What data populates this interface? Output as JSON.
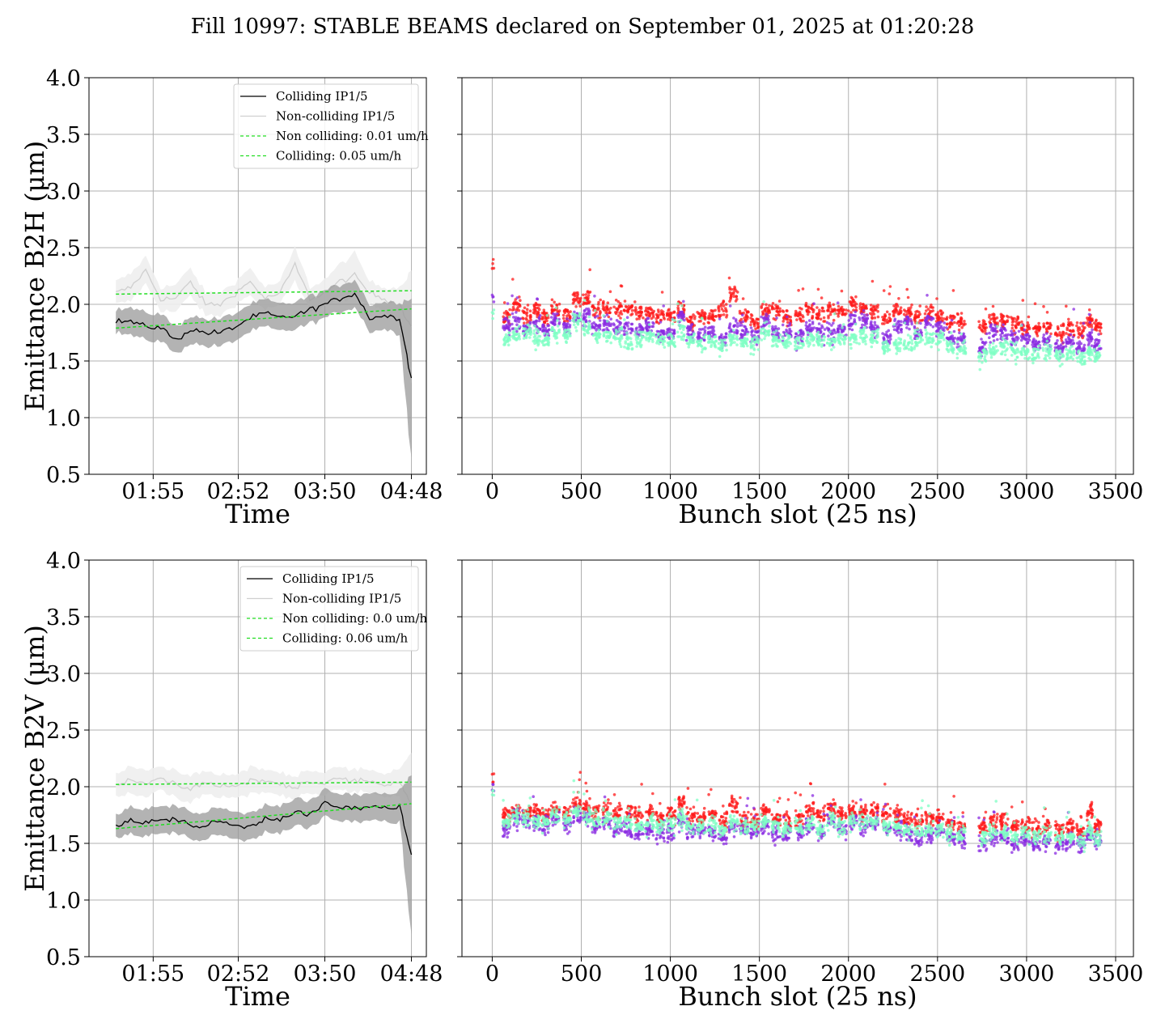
{
  "figure": {
    "title": "Fill 10997: STABLE BEAMS declared on September 01, 2025 at 01:20:28"
  },
  "chart_data": [
    {
      "id": "time-h",
      "type": "line",
      "xlabel": "Time",
      "ylabel": "Emittance B2H (μm)",
      "ylim": [
        0.5,
        4.0
      ],
      "yticks": [
        "0.5",
        "1.0",
        "1.5",
        "2.0",
        "2.5",
        "3.0",
        "3.5",
        "4.0"
      ],
      "xticks": [
        "01:55",
        "02:52",
        "03:50",
        "04:48"
      ],
      "xlim": [
        "01:21",
        "04:48"
      ],
      "grid": true,
      "legend_position": "top-right",
      "legend": [
        "Colliding IP1/5",
        "Non-colliding IP1/5",
        "Non colliding: 0.01 um/h",
        "Colliding: 0.05 um/h"
      ],
      "series": [
        {
          "name": "Colliding IP1/5",
          "color": "#000000",
          "x": [
            "01:30",
            "01:40",
            "01:50",
            "02:00",
            "02:10",
            "02:20",
            "02:30",
            "02:40",
            "02:50",
            "03:00",
            "03:10",
            "03:20",
            "03:30",
            "03:40",
            "03:50",
            "04:00",
            "04:10",
            "04:20",
            "04:30",
            "04:40",
            "04:48"
          ],
          "values": [
            1.85,
            1.85,
            1.8,
            1.8,
            1.68,
            1.78,
            1.75,
            1.75,
            1.8,
            1.88,
            1.92,
            1.88,
            1.9,
            1.95,
            2.0,
            2.05,
            2.1,
            1.88,
            1.9,
            1.88,
            1.35
          ],
          "band": [
            0.1,
            0.12,
            0.12,
            0.12,
            0.12,
            0.12,
            0.12,
            0.12,
            0.12,
            0.12,
            0.12,
            0.12,
            0.12,
            0.12,
            0.12,
            0.12,
            0.12,
            0.12,
            0.12,
            0.14,
            0.7
          ]
        },
        {
          "name": "Non-colliding IP1/5",
          "color": "#d9d9d9",
          "x": [
            "01:30",
            "01:40",
            "01:50",
            "02:00",
            "02:10",
            "02:20",
            "02:30",
            "02:40",
            "02:50",
            "03:00",
            "03:10",
            "03:20",
            "03:30",
            "03:40",
            "03:50",
            "04:00",
            "04:10",
            "04:20",
            "04:30",
            "04:40",
            "04:48"
          ],
          "values": [
            2.1,
            2.15,
            2.3,
            2.05,
            2.05,
            2.2,
            2.0,
            2.0,
            2.1,
            2.2,
            2.05,
            2.1,
            2.35,
            2.05,
            2.1,
            2.2,
            2.25,
            2.1,
            2.05,
            2.0,
            1.8
          ],
          "band": [
            0.1,
            0.12,
            0.12,
            0.1,
            0.12,
            0.12,
            0.1,
            0.1,
            0.1,
            0.12,
            0.1,
            0.1,
            0.15,
            0.1,
            0.12,
            0.15,
            0.2,
            0.1,
            0.1,
            0.15,
            0.5
          ]
        },
        {
          "name": "Non colliding: 0.01 um/h",
          "color": "#22dd22",
          "dashed": true,
          "x": [
            "01:30",
            "04:48"
          ],
          "values": [
            2.09,
            2.12
          ]
        },
        {
          "name": "Colliding: 0.05 um/h",
          "color": "#22dd22",
          "dashed": true,
          "x": [
            "01:30",
            "04:48"
          ],
          "values": [
            1.79,
            1.96
          ]
        }
      ]
    },
    {
      "id": "slot-h",
      "type": "scatter",
      "xlabel": "Bunch slot (25 ns)",
      "xlim": [
        -170,
        3600
      ],
      "xticks": [
        "0",
        "500",
        "1000",
        "1500",
        "2000",
        "2500",
        "3000",
        "3500"
      ],
      "ylim": [
        0.5,
        4.0
      ],
      "grid": true,
      "trains": [
        0,
        60,
        110,
        170,
        230,
        280,
        330,
        400,
        450,
        510,
        560,
        620,
        680,
        740,
        800,
        860,
        920,
        980,
        1040,
        1090,
        1150,
        1210,
        1270,
        1330,
        1390,
        1450,
        1510,
        1570,
        1630,
        1700,
        1760,
        1820,
        1880,
        1940,
        2000,
        2060,
        2120,
        2190,
        2250,
        2310,
        2370,
        2430,
        2490,
        2550,
        2610,
        2730,
        2790,
        2850,
        2910,
        2970,
        3030,
        3090,
        3160,
        3220,
        3280,
        3340,
        3380
      ],
      "series": [
        {
          "name": "",
          "color": "#ff1a1a",
          "values": [
            2.36,
            1.88,
            2.0,
            1.9,
            1.95,
            1.88,
            1.95,
            1.9,
            2.05,
            2.05,
            1.95,
            1.95,
            1.95,
            1.95,
            1.92,
            1.92,
            1.9,
            1.9,
            1.95,
            1.85,
            1.9,
            1.9,
            1.95,
            2.1,
            1.9,
            1.85,
            1.95,
            1.95,
            1.88,
            1.9,
            1.95,
            1.9,
            1.95,
            1.95,
            2.0,
            1.95,
            1.95,
            1.88,
            1.95,
            1.92,
            1.9,
            1.92,
            1.9,
            1.85,
            1.85,
            1.8,
            1.85,
            1.85,
            1.82,
            1.8,
            1.78,
            1.8,
            1.75,
            1.8,
            1.78,
            1.85,
            1.8
          ]
        },
        {
          "name": "",
          "color": "#8a2be2",
          "values": [
            2.05,
            1.82,
            1.85,
            1.78,
            1.82,
            1.78,
            1.85,
            1.8,
            1.9,
            1.9,
            1.8,
            1.82,
            1.8,
            1.78,
            1.78,
            1.8,
            1.75,
            1.75,
            1.9,
            1.75,
            1.72,
            1.75,
            1.7,
            1.8,
            1.75,
            1.72,
            1.85,
            1.75,
            1.75,
            1.72,
            1.8,
            1.75,
            1.75,
            1.78,
            1.85,
            1.85,
            1.8,
            1.72,
            1.8,
            1.85,
            1.75,
            1.85,
            1.78,
            1.72,
            1.68,
            1.62,
            1.75,
            1.75,
            1.7,
            1.7,
            1.65,
            1.68,
            1.62,
            1.68,
            1.62,
            1.7,
            1.65
          ]
        },
        {
          "name": "",
          "color": "#7fffc4",
          "values": [
            1.95,
            1.7,
            1.75,
            1.75,
            1.7,
            1.68,
            1.75,
            1.72,
            1.85,
            1.8,
            1.72,
            1.72,
            1.72,
            1.68,
            1.7,
            1.72,
            1.68,
            1.68,
            1.78,
            1.68,
            1.65,
            1.68,
            1.62,
            1.7,
            1.68,
            1.65,
            1.75,
            1.68,
            1.68,
            1.65,
            1.7,
            1.68,
            1.68,
            1.7,
            1.7,
            1.72,
            1.7,
            1.62,
            1.65,
            1.65,
            1.68,
            1.7,
            1.7,
            1.62,
            1.6,
            1.55,
            1.6,
            1.62,
            1.58,
            1.58,
            1.55,
            1.58,
            1.55,
            1.58,
            1.52,
            1.58,
            1.55
          ]
        }
      ]
    },
    {
      "id": "time-v",
      "type": "line",
      "xlabel": "Time",
      "ylabel": "Emittance B2V (μm)",
      "ylim": [
        0.5,
        4.0
      ],
      "yticks": [
        "0.5",
        "1.0",
        "1.5",
        "2.0",
        "2.5",
        "3.0",
        "3.5",
        "4.0"
      ],
      "xticks": [
        "01:55",
        "02:52",
        "03:50",
        "04:48"
      ],
      "xlim": [
        "01:21",
        "04:48"
      ],
      "grid": true,
      "legend_position": "top-right",
      "legend": [
        "Colliding IP1/5",
        "Non-colliding IP1/5",
        "Non colliding: 0.0 um/h",
        "Colliding: 0.06 um/h"
      ],
      "series": [
        {
          "name": "Colliding IP1/5",
          "color": "#000000",
          "x": [
            "01:30",
            "01:40",
            "01:50",
            "02:00",
            "02:10",
            "02:20",
            "02:30",
            "02:40",
            "02:50",
            "03:00",
            "03:10",
            "03:20",
            "03:30",
            "03:40",
            "03:50",
            "04:00",
            "04:10",
            "04:20",
            "04:30",
            "04:40",
            "04:48"
          ],
          "values": [
            1.65,
            1.7,
            1.68,
            1.7,
            1.72,
            1.66,
            1.65,
            1.7,
            1.65,
            1.65,
            1.72,
            1.72,
            1.78,
            1.75,
            1.85,
            1.82,
            1.8,
            1.82,
            1.82,
            1.82,
            1.4
          ],
          "band": [
            0.1,
            0.12,
            0.12,
            0.12,
            0.12,
            0.12,
            0.12,
            0.12,
            0.12,
            0.12,
            0.12,
            0.12,
            0.12,
            0.12,
            0.12,
            0.12,
            0.12,
            0.12,
            0.12,
            0.14,
            0.7
          ]
        },
        {
          "name": "Non-colliding IP1/5",
          "color": "#d9d9d9",
          "x": [
            "01:30",
            "01:40",
            "01:50",
            "02:00",
            "02:10",
            "02:20",
            "02:30",
            "02:40",
            "02:50",
            "03:00",
            "03:10",
            "03:20",
            "03:30",
            "03:40",
            "03:50",
            "04:00",
            "04:10",
            "04:20",
            "04:30",
            "04:40",
            "04:48"
          ],
          "values": [
            2.02,
            2.05,
            2.02,
            2.08,
            2.02,
            1.98,
            2.05,
            2.0,
            2.0,
            2.05,
            2.05,
            2.02,
            2.0,
            2.05,
            2.02,
            2.08,
            2.05,
            2.05,
            2.02,
            2.05,
            1.85
          ],
          "band": [
            0.1,
            0.12,
            0.12,
            0.1,
            0.12,
            0.12,
            0.1,
            0.1,
            0.1,
            0.12,
            0.1,
            0.1,
            0.1,
            0.1,
            0.1,
            0.1,
            0.1,
            0.1,
            0.1,
            0.12,
            0.45
          ]
        },
        {
          "name": "Non colliding: 0.0 um/h",
          "color": "#22dd22",
          "dashed": true,
          "x": [
            "01:30",
            "04:48"
          ],
          "values": [
            2.02,
            2.04
          ]
        },
        {
          "name": "Colliding: 0.06 um/h",
          "color": "#22dd22",
          "dashed": true,
          "x": [
            "01:30",
            "04:48"
          ],
          "values": [
            1.63,
            1.85
          ]
        }
      ]
    },
    {
      "id": "slot-v",
      "type": "scatter",
      "xlabel": "Bunch slot (25 ns)",
      "xlim": [
        -170,
        3600
      ],
      "xticks": [
        "0",
        "500",
        "1000",
        "1500",
        "2000",
        "2500",
        "3000",
        "3500"
      ],
      "ylim": [
        0.5,
        4.0
      ],
      "grid": true,
      "trains": [
        0,
        60,
        110,
        170,
        230,
        280,
        330,
        400,
        450,
        510,
        560,
        620,
        680,
        740,
        800,
        860,
        920,
        980,
        1040,
        1090,
        1150,
        1210,
        1270,
        1330,
        1390,
        1450,
        1510,
        1570,
        1630,
        1700,
        1760,
        1820,
        1880,
        1940,
        2000,
        2060,
        2120,
        2190,
        2250,
        2310,
        2370,
        2430,
        2490,
        2550,
        2610,
        2730,
        2790,
        2850,
        2910,
        2970,
        3030,
        3090,
        3160,
        3220,
        3280,
        3340,
        3380
      ],
      "series": [
        {
          "name": "",
          "color": "#ff1a1a",
          "values": [
            2.1,
            1.75,
            1.8,
            1.78,
            1.8,
            1.75,
            1.8,
            1.78,
            1.85,
            1.82,
            1.78,
            1.8,
            1.78,
            1.78,
            1.75,
            1.78,
            1.72,
            1.75,
            1.85,
            1.75,
            1.72,
            1.75,
            1.7,
            1.85,
            1.72,
            1.7,
            1.78,
            1.72,
            1.7,
            1.72,
            1.8,
            1.75,
            1.82,
            1.75,
            1.8,
            1.78,
            1.8,
            1.75,
            1.75,
            1.72,
            1.7,
            1.72,
            1.72,
            1.68,
            1.65,
            1.65,
            1.68,
            1.7,
            1.65,
            1.68,
            1.62,
            1.65,
            1.62,
            1.65,
            1.6,
            1.78,
            1.65
          ]
        },
        {
          "name": "",
          "color": "#8a2be2",
          "values": [
            2.0,
            1.62,
            1.72,
            1.7,
            1.68,
            1.65,
            1.72,
            1.68,
            1.75,
            1.72,
            1.65,
            1.68,
            1.62,
            1.62,
            1.6,
            1.62,
            1.58,
            1.6,
            1.7,
            1.6,
            1.62,
            1.6,
            1.55,
            1.65,
            1.62,
            1.6,
            1.65,
            1.6,
            1.58,
            1.6,
            1.65,
            1.6,
            1.7,
            1.62,
            1.68,
            1.65,
            1.68,
            1.62,
            1.62,
            1.6,
            1.55,
            1.58,
            1.6,
            1.55,
            1.55,
            1.5,
            1.55,
            1.55,
            1.5,
            1.52,
            1.5,
            1.52,
            1.5,
            1.5,
            1.48,
            1.58,
            1.52
          ]
        },
        {
          "name": "",
          "color": "#7fffc4",
          "values": [
            1.95,
            1.68,
            1.75,
            1.72,
            1.7,
            1.68,
            1.75,
            1.72,
            1.78,
            1.75,
            1.7,
            1.72,
            1.68,
            1.68,
            1.65,
            1.68,
            1.65,
            1.68,
            1.72,
            1.65,
            1.65,
            1.65,
            1.62,
            1.7,
            1.65,
            1.65,
            1.7,
            1.65,
            1.62,
            1.65,
            1.68,
            1.62,
            1.7,
            1.65,
            1.7,
            1.68,
            1.7,
            1.65,
            1.65,
            1.62,
            1.6,
            1.62,
            1.62,
            1.6,
            1.58,
            1.55,
            1.6,
            1.6,
            1.55,
            1.58,
            1.55,
            1.58,
            1.55,
            1.55,
            1.52,
            1.62,
            1.55
          ]
        }
      ]
    }
  ]
}
